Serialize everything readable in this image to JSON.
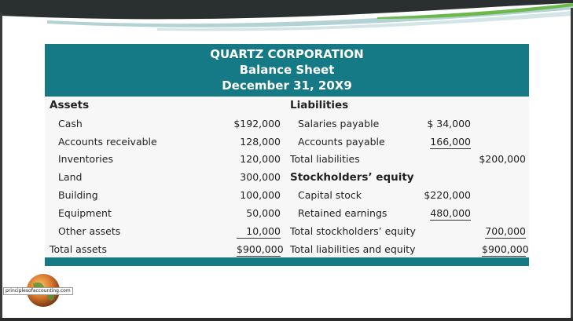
{
  "header": {
    "company": "QUARTZ CORPORATION",
    "statement": "Balance Sheet",
    "date": "December 31, 20X9"
  },
  "assets": {
    "heading": "Assets",
    "items": [
      {
        "label": "Cash",
        "amount": "$192,000"
      },
      {
        "label": "Accounts receivable",
        "amount": "128,000"
      },
      {
        "label": "Inventories",
        "amount": "120,000"
      },
      {
        "label": "Land",
        "amount": "300,000"
      },
      {
        "label": "Building",
        "amount": "100,000"
      },
      {
        "label": "Equipment",
        "amount": "50,000"
      },
      {
        "label": "Other assets",
        "amount": "10,000"
      }
    ],
    "total_label": "Total assets",
    "total_amount": "$900,000"
  },
  "liabilities": {
    "heading": "Liabilities",
    "items": [
      {
        "label": "Salaries payable",
        "amount": "$ 34,000"
      },
      {
        "label": "Accounts payable",
        "amount": "166,000"
      }
    ],
    "total_label": "Total liabilities",
    "total_amount": "$200,000"
  },
  "equity": {
    "heading": "Stockholders’ equity",
    "items": [
      {
        "label": "Capital stock",
        "amount": "$220,000"
      },
      {
        "label": "Retained earnings",
        "amount": "480,000"
      }
    ],
    "total_label": "Total stockholders’ equity",
    "total_amount": "700,000"
  },
  "grand_total": {
    "label": "Total liabilities and equity",
    "amount": "$900,000"
  },
  "logo": {
    "text": "principlesofaccounting.com"
  },
  "colors": {
    "header_teal": "#157a86",
    "swoosh_green": "#5fa53a"
  }
}
